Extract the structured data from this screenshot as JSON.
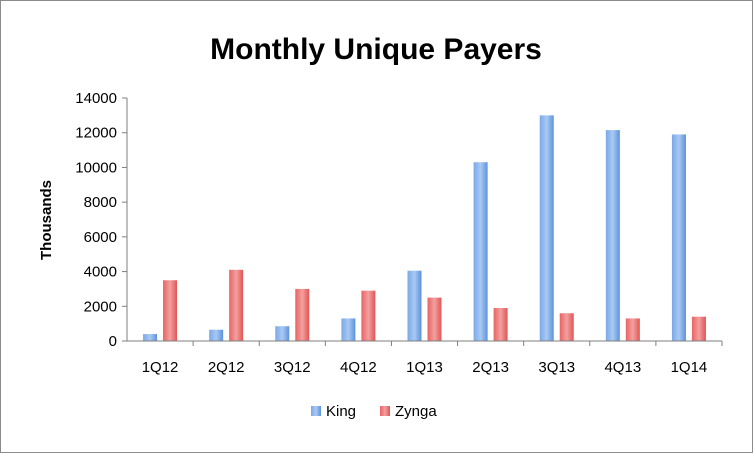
{
  "chart_data": {
    "type": "bar",
    "title": "Monthly Unique Payers",
    "xlabel": "",
    "ylabel": "Thousands",
    "ylim": [
      0,
      14000
    ],
    "yticks": [
      0,
      2000,
      4000,
      6000,
      8000,
      10000,
      12000,
      14000
    ],
    "grid": false,
    "legend_position": "bottom",
    "categories": [
      "1Q12",
      "2Q12",
      "3Q12",
      "4Q12",
      "1Q13",
      "2Q13",
      "3Q13",
      "4Q13",
      "1Q14"
    ],
    "series": [
      {
        "name": "King",
        "color": "#4a86d8",
        "values": [
          400,
          650,
          850,
          1300,
          4050,
          10300,
          13000,
          12150,
          11900
        ]
      },
      {
        "name": "Zynga",
        "color": "#e8504f",
        "values": [
          3500,
          4100,
          3000,
          2900,
          2500,
          1900,
          1600,
          1300,
          1400
        ]
      }
    ]
  }
}
